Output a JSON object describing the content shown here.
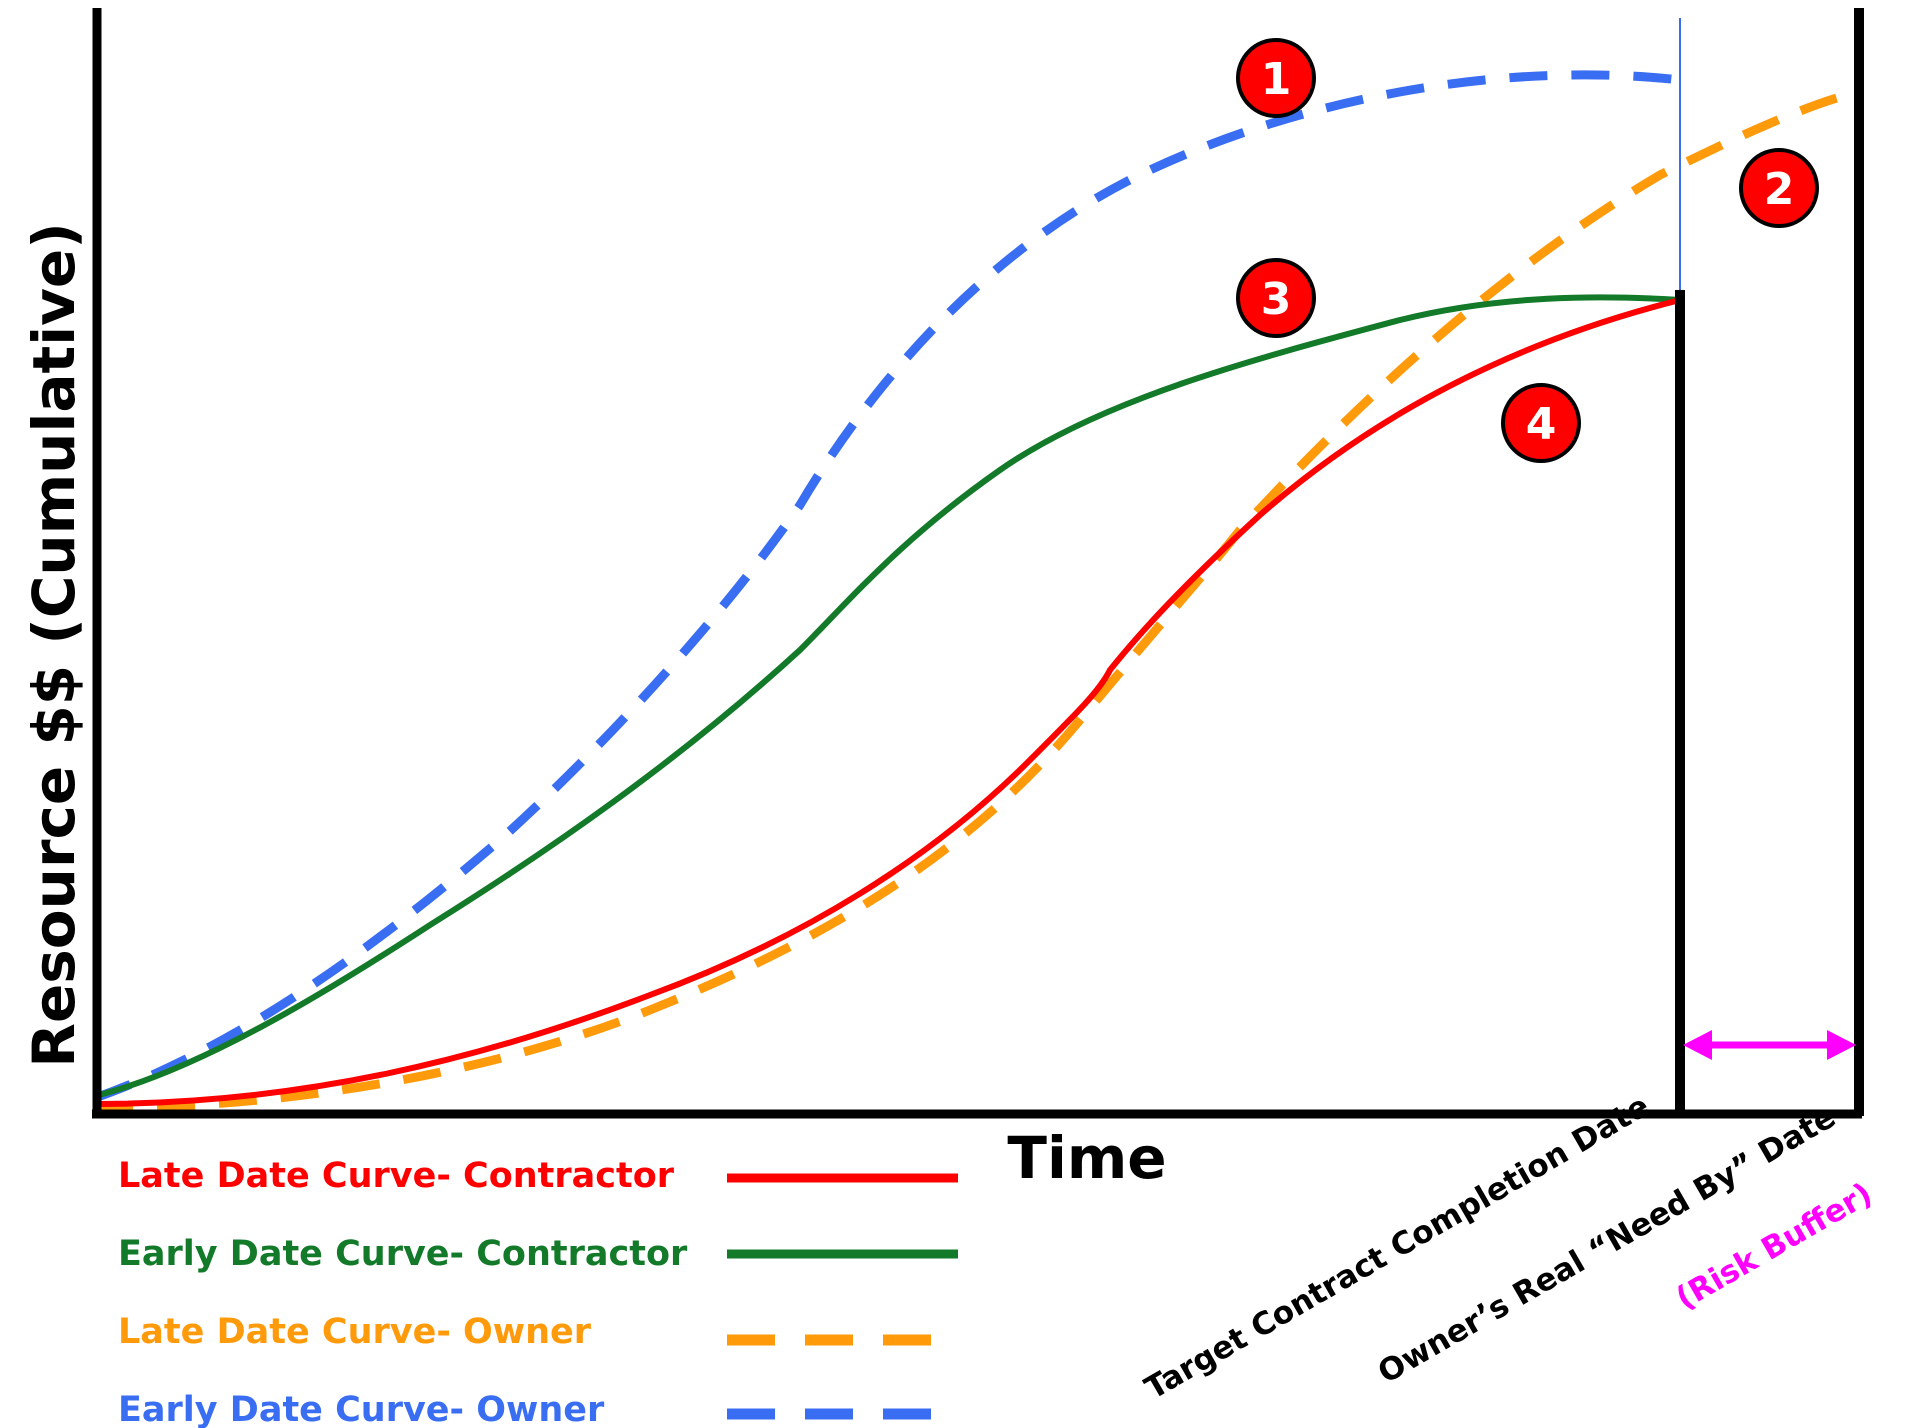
{
  "diagram": {
    "y_axis_label": "Resource $$ (Cumulative)",
    "x_axis_label": "Time",
    "markers": {
      "target_contract_completion": "Target Contract Completion Date",
      "owner_need_by": "Owner’s Real “Need By” Date",
      "risk_buffer": "(Risk Buffer)"
    },
    "callouts": [
      "1",
      "2",
      "3",
      "4"
    ],
    "legend": [
      {
        "label": "Late Date Curve- Contractor",
        "color": "#ff0000",
        "style": "solid"
      },
      {
        "label": "Early Date Curve- Contractor",
        "color": "#127a28",
        "style": "solid"
      },
      {
        "label": "Late Date Curve- Owner",
        "color": "#ff9a0a",
        "style": "dashed"
      },
      {
        "label": "Early Date Curve- Owner",
        "color": "#3a6ef2",
        "style": "dashed"
      }
    ],
    "colors": {
      "axis": "#000000",
      "callout_fill": "#ff0000",
      "callout_text": "#ffffff",
      "risk_buffer": "#ff00ff",
      "contract_marker_line": "#3a6ef2"
    }
  }
}
